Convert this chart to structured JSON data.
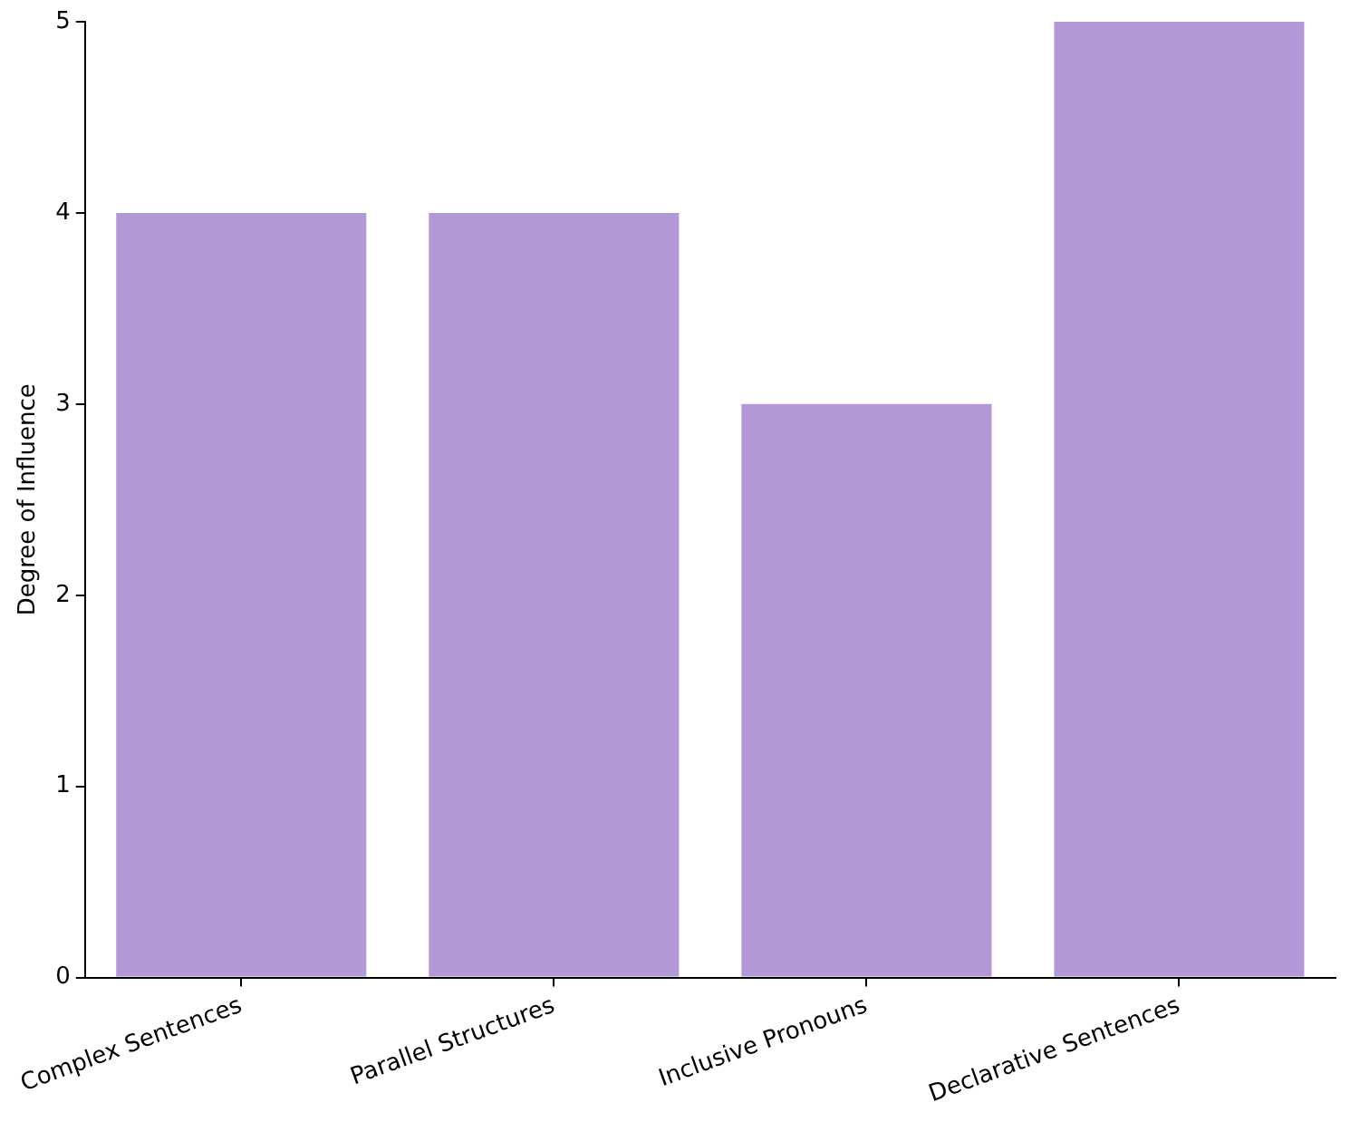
{
  "chart_data": {
    "type": "bar",
    "ylabel": "Degree of Influence",
    "categories": [
      "Complex Sentences",
      "Parallel Structures",
      "Inclusive Pronouns",
      "Declarative Sentences"
    ],
    "values": [
      4,
      4,
      3,
      5
    ],
    "color": "#b398d8",
    "ylim": [
      0,
      5
    ],
    "yticks": [
      0,
      1,
      2,
      3,
      4,
      5
    ],
    "grid": false,
    "legend": false
  }
}
